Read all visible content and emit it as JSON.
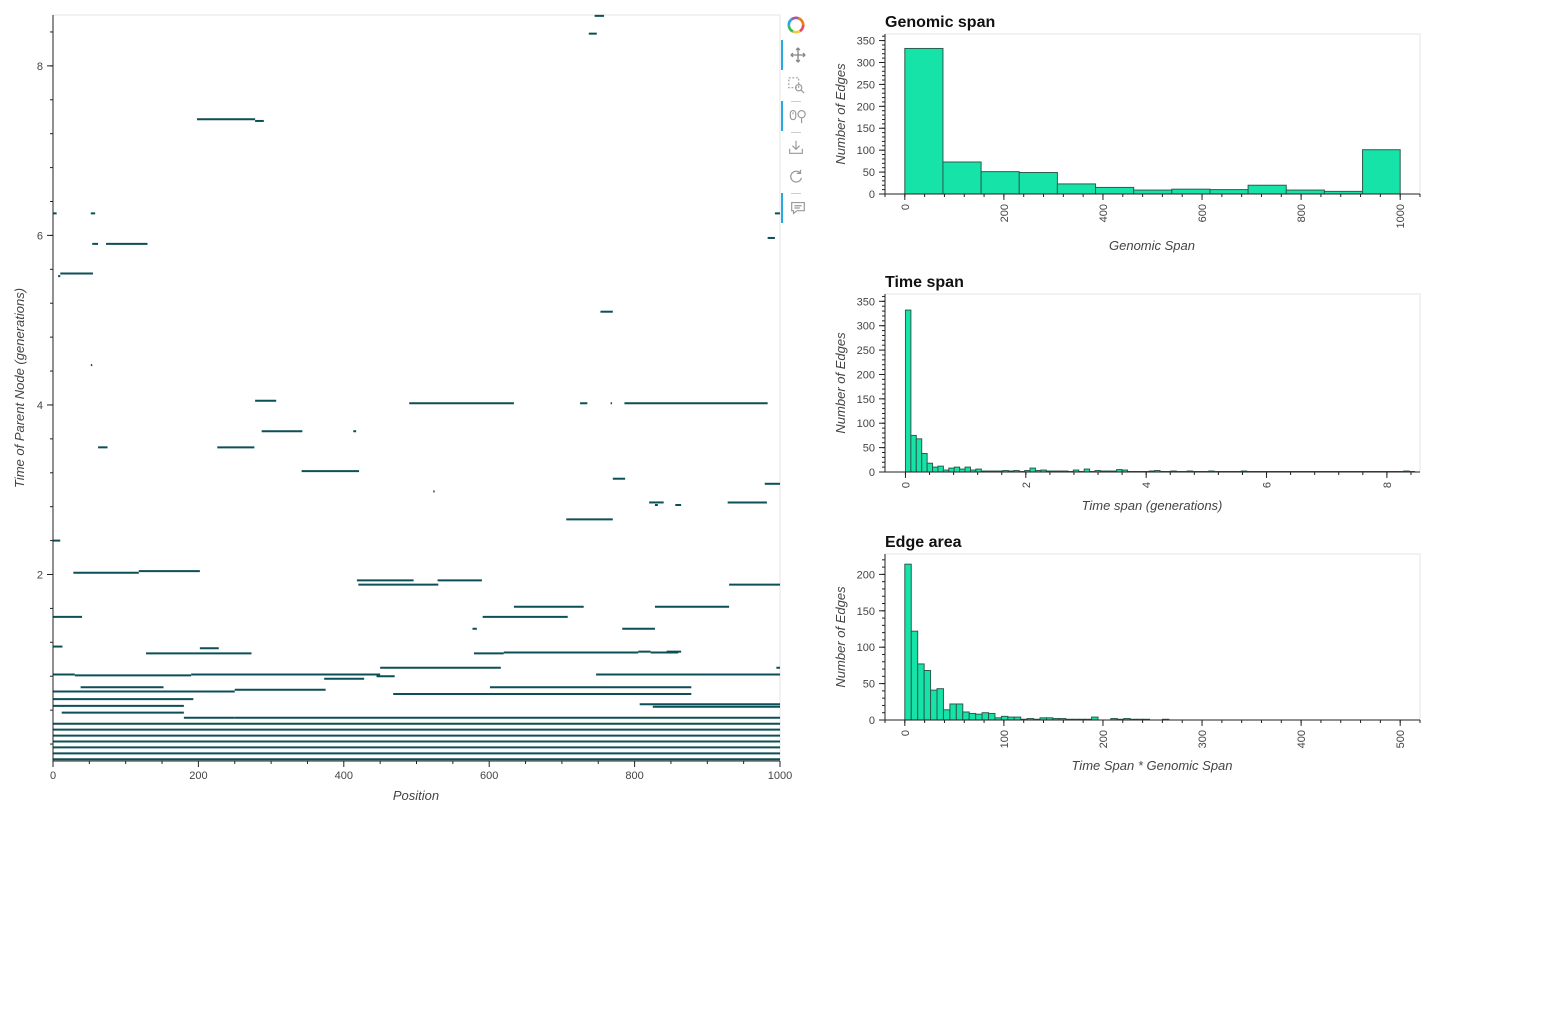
{
  "main_plot": {
    "xlabel": "Position",
    "ylabel": "Time of Parent Node (generations)",
    "x_range": [
      0,
      1000
    ],
    "y_range": [
      -0.2,
      8.6
    ],
    "x_ticks": [
      0,
      200,
      400,
      600,
      800,
      1000
    ],
    "y_ticks": [
      2,
      4,
      6,
      8
    ],
    "edge_color": "#0b4f57",
    "segments": [
      [
        745,
        758,
        8.59
      ],
      [
        737,
        748,
        8.38
      ],
      [
        198,
        278,
        7.37
      ],
      [
        278,
        290,
        7.35
      ],
      [
        0,
        5,
        6.26
      ],
      [
        52,
        58,
        6.26
      ],
      [
        993,
        1000,
        6.26
      ],
      [
        983,
        993,
        5.97
      ],
      [
        54,
        62,
        5.9
      ],
      [
        73,
        130,
        5.9
      ],
      [
        10,
        55,
        5.55
      ],
      [
        7,
        10,
        5.52
      ],
      [
        753,
        770,
        5.1
      ],
      [
        52,
        54,
        4.47
      ],
      [
        278,
        307,
        4.05
      ],
      [
        490,
        634,
        4.02
      ],
      [
        725,
        735,
        4.02
      ],
      [
        767,
        769,
        4.02
      ],
      [
        786,
        983,
        4.02
      ],
      [
        287,
        343,
        3.69
      ],
      [
        413,
        417,
        3.69
      ],
      [
        62,
        75,
        3.5
      ],
      [
        226,
        277,
        3.5
      ],
      [
        342,
        421,
        3.22
      ],
      [
        979,
        1000,
        3.07
      ],
      [
        770,
        787,
        3.13
      ],
      [
        523,
        525,
        2.98
      ],
      [
        820,
        840,
        2.85
      ],
      [
        828,
        832,
        2.82
      ],
      [
        856,
        864,
        2.82
      ],
      [
        928,
        982,
        2.85
      ],
      [
        706,
        770,
        2.65
      ],
      [
        0,
        10,
        2.4
      ],
      [
        28,
        118,
        2.02
      ],
      [
        118,
        202,
        2.04
      ],
      [
        418,
        496,
        1.93
      ],
      [
        420,
        530,
        1.88
      ],
      [
        529,
        590,
        1.93
      ],
      [
        930,
        1000,
        1.88
      ],
      [
        634,
        730,
        1.62
      ],
      [
        828,
        930,
        1.62
      ],
      [
        0,
        40,
        1.5
      ],
      [
        591,
        708,
        1.5
      ],
      [
        577,
        583,
        1.36
      ],
      [
        783,
        828,
        1.36
      ],
      [
        0,
        13,
        1.15
      ],
      [
        202,
        228,
        1.13
      ],
      [
        128,
        273,
        1.07
      ],
      [
        579,
        620,
        1.07
      ],
      [
        620,
        805,
        1.08
      ],
      [
        805,
        822,
        1.09
      ],
      [
        822,
        860,
        1.08
      ],
      [
        844,
        864,
        1.09
      ],
      [
        450,
        616,
        0.9
      ],
      [
        995,
        1000,
        0.9
      ],
      [
        0,
        30,
        0.82
      ],
      [
        30,
        190,
        0.81
      ],
      [
        190,
        450,
        0.82
      ],
      [
        445,
        470,
        0.8
      ],
      [
        747,
        1000,
        0.82
      ],
      [
        373,
        428,
        0.77
      ],
      [
        38,
        152,
        0.67
      ],
      [
        601,
        878,
        0.67
      ],
      [
        0,
        250,
        0.62
      ],
      [
        250,
        375,
        0.64
      ],
      [
        468,
        878,
        0.59
      ],
      [
        0,
        193,
        0.53
      ],
      [
        0,
        180,
        0.45
      ],
      [
        807,
        1000,
        0.47
      ],
      [
        825,
        1000,
        0.44
      ],
      [
        12,
        180,
        0.37
      ],
      [
        180,
        250,
        0.31
      ],
      [
        250,
        1000,
        0.31
      ],
      [
        0,
        1000,
        0.24
      ],
      [
        0,
        1000,
        0.17
      ],
      [
        0,
        1000,
        0.1
      ],
      [
        0,
        1000,
        0.03
      ],
      [
        0,
        1000,
        -0.04
      ],
      [
        0,
        1000,
        -0.11
      ],
      [
        0,
        1000,
        -0.18
      ]
    ]
  },
  "toolbar": {
    "tools": [
      "bokeh-logo-icon",
      "pan-icon",
      "box-zoom-icon",
      "wheel-zoom-icon",
      "save-icon",
      "reset-icon",
      "hover-icon"
    ]
  },
  "chart_data": [
    {
      "type": "bar",
      "title": "Genomic span",
      "xlabel": "Genomic Span",
      "ylabel": "Number of Edges",
      "bin_edges": [
        0,
        77,
        154,
        231,
        308,
        385,
        462,
        539,
        616,
        693,
        770,
        847,
        924,
        1000
      ],
      "values": [
        332,
        73,
        51,
        49,
        23,
        15,
        9,
        11,
        10,
        20,
        9,
        6,
        101
      ],
      "x_ticks": [
        0,
        200,
        400,
        600,
        800,
        1000
      ],
      "y_ticks": [
        0,
        50,
        100,
        150,
        200,
        250,
        300,
        350
      ],
      "xlim": [
        -40,
        1040
      ],
      "ylim": [
        0,
        365
      ]
    },
    {
      "type": "bar",
      "title": "Time span",
      "xlabel": "Time span (generations)",
      "ylabel": "Number of Edges",
      "bin_start": 0,
      "bin_width": 0.09,
      "values": [
        332,
        75,
        68,
        38,
        18,
        10,
        12,
        4,
        8,
        10,
        6,
        10,
        4,
        6,
        2,
        2,
        2,
        2,
        3,
        2,
        3,
        1,
        3,
        8,
        3,
        4,
        2,
        2,
        2,
        2,
        1,
        4,
        1,
        6,
        1,
        3,
        2,
        2,
        2,
        5,
        4,
        1,
        1,
        1,
        1,
        2,
        3,
        1,
        1,
        2,
        1,
        1,
        2,
        1,
        1,
        1,
        2,
        1,
        1,
        1,
        1,
        1,
        2,
        1,
        1,
        1,
        1,
        1,
        1,
        1,
        1,
        1,
        1,
        1,
        1,
        1,
        1,
        1,
        1,
        1,
        1,
        1,
        1,
        1,
        1,
        1,
        1,
        1,
        1,
        1,
        1,
        1,
        2,
        1
      ],
      "x_ticks": [
        0,
        2,
        4,
        6,
        8
      ],
      "y_ticks": [
        0,
        50,
        100,
        150,
        200,
        250,
        300,
        350
      ],
      "xlim": [
        -0.34,
        8.55
      ],
      "ylim": [
        0,
        365
      ]
    },
    {
      "type": "bar",
      "title": "Edge area",
      "xlabel": "Time Span * Genomic Span",
      "ylabel": "Number of Edges",
      "bin_start": 0,
      "bin_width": 6.5,
      "values": [
        214,
        122,
        77,
        68,
        41,
        43,
        14,
        22,
        22,
        11,
        9,
        8,
        10,
        9,
        3,
        5,
        4,
        4,
        1,
        2,
        1,
        3,
        3,
        2,
        2,
        1,
        1,
        1,
        1,
        4,
        0,
        0,
        2,
        1,
        2,
        1,
        1,
        1,
        0,
        0,
        1
      ],
      "x_ticks": [
        0,
        100,
        200,
        300,
        400,
        500
      ],
      "y_ticks": [
        0,
        50,
        100,
        150,
        200
      ],
      "xlim": [
        -20,
        520
      ],
      "ylim": [
        0,
        228
      ]
    }
  ],
  "colors": {
    "hist_fill": "#15e3a8",
    "hist_stroke": "#2d5c4e",
    "edge": "#0b4f57",
    "toolbar_active": "#26aae1"
  }
}
